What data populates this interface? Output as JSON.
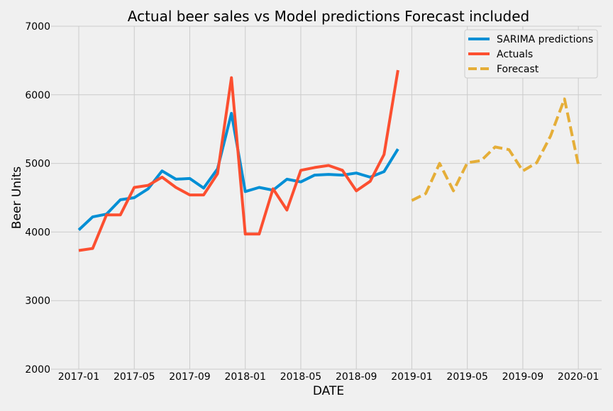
{
  "chart_data": {
    "type": "line",
    "title": "Actual beer sales vs Model predictions Forecast included",
    "xlabel": "DATE",
    "ylabel": "Beer Units",
    "ylim": [
      2000,
      7000
    ],
    "yticks": [
      "2000",
      "3000",
      "4000",
      "5000",
      "6000",
      "7000"
    ],
    "xticks": [
      "2017-01",
      "2017-05",
      "2017-09",
      "2018-01",
      "2018-05",
      "2018-09",
      "2019-01",
      "2019-05",
      "2019-09",
      "2020-01"
    ],
    "grid": true,
    "legend_position": "top-right",
    "series": [
      {
        "name": "SARIMA predictions",
        "color": "#008fd5",
        "style": "solid",
        "x": [
          "2017-01",
          "2017-02",
          "2017-03",
          "2017-04",
          "2017-05",
          "2017-06",
          "2017-07",
          "2017-08",
          "2017-09",
          "2017-10",
          "2017-11",
          "2017-12",
          "2018-01",
          "2018-02",
          "2018-03",
          "2018-04",
          "2018-05",
          "2018-06",
          "2018-07",
          "2018-08",
          "2018-09",
          "2018-10",
          "2018-11",
          "2018-12"
        ],
        "values": [
          4030,
          4220,
          4260,
          4470,
          4500,
          4630,
          4890,
          4770,
          4780,
          4640,
          4920,
          5730,
          4590,
          4650,
          4610,
          4770,
          4730,
          4830,
          4840,
          4830,
          4860,
          4800,
          4880,
          5210
        ]
      },
      {
        "name": "Actuals",
        "color": "#fc4f30",
        "style": "solid",
        "x": [
          "2017-01",
          "2017-02",
          "2017-03",
          "2017-04",
          "2017-05",
          "2017-06",
          "2017-07",
          "2017-08",
          "2017-09",
          "2017-10",
          "2017-11",
          "2017-12",
          "2018-01",
          "2018-02",
          "2018-03",
          "2018-04",
          "2018-05",
          "2018-06",
          "2018-07",
          "2018-08",
          "2018-09",
          "2018-10",
          "2018-11",
          "2018-12"
        ],
        "values": [
          3730,
          3760,
          4250,
          4250,
          4650,
          4680,
          4800,
          4650,
          4540,
          4540,
          4850,
          6250,
          3970,
          3970,
          4630,
          4320,
          4900,
          4940,
          4970,
          4900,
          4600,
          4740,
          5130,
          6360
        ]
      },
      {
        "name": "Forecast",
        "color": "#e5ae38",
        "style": "dashed",
        "x": [
          "2019-01",
          "2019-02",
          "2019-03",
          "2019-04",
          "2019-05",
          "2019-06",
          "2019-07",
          "2019-08",
          "2019-09",
          "2019-10",
          "2019-11",
          "2019-12",
          "2020-01"
        ],
        "values": [
          4460,
          4560,
          5000,
          4600,
          5010,
          5040,
          5240,
          5200,
          4890,
          5010,
          5400,
          5940,
          4980
        ]
      }
    ]
  }
}
